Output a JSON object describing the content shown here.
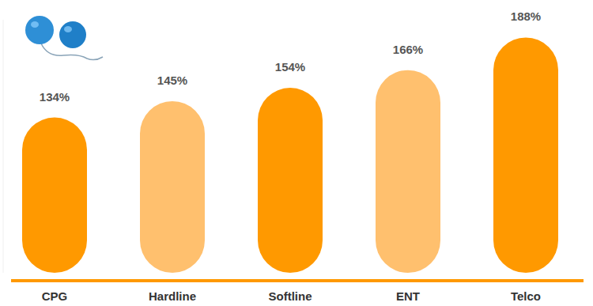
{
  "chart_data": {
    "type": "bar",
    "categories": [
      "CPG",
      "Hardline",
      "Softline",
      "ENT",
      "Telco"
    ],
    "values": [
      134,
      145,
      154,
      166,
      188
    ],
    "value_labels": [
      "134%",
      "145%",
      "154%",
      "166%",
      "188%"
    ],
    "colors": [
      "#ff9900",
      "#ffc06e",
      "#ff9900",
      "#ffc06e",
      "#ff9900"
    ],
    "ylim": [
      29,
      200
    ],
    "data_labels": true,
    "tick_labels": "x",
    "grid": false
  }
}
